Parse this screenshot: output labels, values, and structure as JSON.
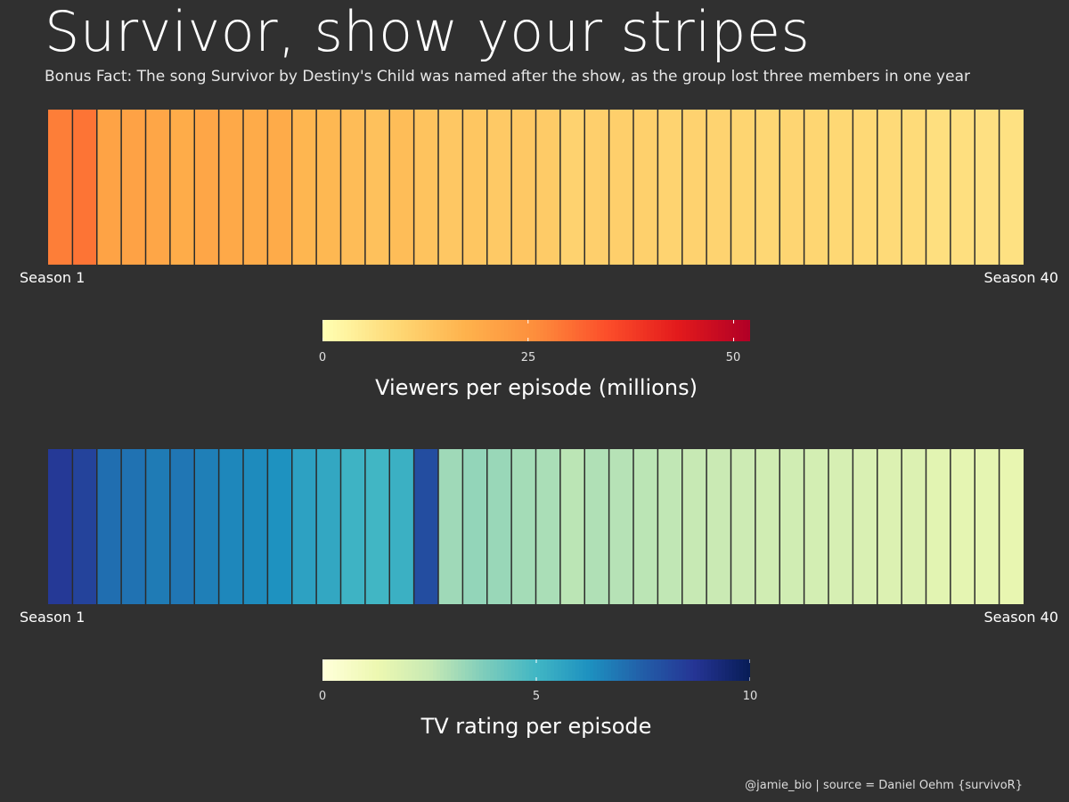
{
  "title": "Survivor, show your stripes",
  "subtitle": "Bonus Fact: The song Survivor by Destiny's Child was named after the show, as the group lost three members in one year",
  "caption": "@jamie_bio | source = Daniel Oehm {survivoR}",
  "colors": {
    "background": "#303030",
    "season_divider": "#2b2b2b",
    "viewers_scale": [
      "#ffffb2",
      "#fed976",
      "#feb24c",
      "#fd8d3c",
      "#fc4e2a",
      "#e31a1c",
      "#b10026"
    ],
    "rating_scale": [
      "#ffffd9",
      "#edf8b1",
      "#c7e9b4",
      "#7fcdbb",
      "#41b6c4",
      "#1d91c0",
      "#225ea8",
      "#253494",
      "#081d58"
    ]
  },
  "chart_data": [
    {
      "type": "heatmap",
      "name": "viewers",
      "xlabel_left": "Season 1",
      "xlabel_right": "Season 40",
      "x_range": [
        "Season 1",
        "Season 40"
      ],
      "seasons": 40,
      "season_mean_values": [
        28.0,
        29.5,
        20.9,
        21.1,
        20.2,
        18.7,
        20.1,
        19.5,
        18.9,
        19.0,
        16.5,
        16.1,
        15.1,
        14.0,
        14.8,
        13.6,
        12.6,
        13.0,
        12.2,
        12.4,
        11.7,
        10.2,
        10.8,
        11.0,
        10.7,
        10.0,
        10.2,
        9.9,
        9.6,
        9.1,
        9.5,
        9.4,
        9.0,
        8.7,
        8.4,
        8.3,
        7.4,
        7.3,
        7.0,
        6.9
      ],
      "legend": {
        "title": "Viewers per episode (millions)",
        "min": 0,
        "max": 52,
        "ticks": [
          {
            "value": 0,
            "label": "0"
          },
          {
            "value": 25,
            "label": "25"
          },
          {
            "value": 50,
            "label": "50"
          }
        ]
      }
    },
    {
      "type": "heatmap",
      "name": "rating",
      "xlabel_left": "Season 1",
      "xlabel_right": "Season 40",
      "x_range": [
        "Season 1",
        "Season 40"
      ],
      "seasons": 40,
      "season_mean_values": [
        8.6,
        8.3,
        7.1,
        7.0,
        6.8,
        6.9,
        6.7,
        6.5,
        6.4,
        6.2,
        5.7,
        5.5,
        5.1,
        5.0,
        5.2,
        8.0,
        3.2,
        3.4,
        3.3,
        3.1,
        3.0,
        2.7,
        2.9,
        2.8,
        2.7,
        2.6,
        2.5,
        2.4,
        2.3,
        2.2,
        2.2,
        2.1,
        2.0,
        1.9,
        1.8,
        1.8,
        1.6,
        1.5,
        1.5,
        1.4
      ],
      "legend": {
        "title": "TV rating per episode",
        "min": 0,
        "max": 10,
        "ticks": [
          {
            "value": 0,
            "label": "0"
          },
          {
            "value": 5,
            "label": "5"
          },
          {
            "value": 10,
            "label": "10"
          }
        ]
      }
    }
  ]
}
